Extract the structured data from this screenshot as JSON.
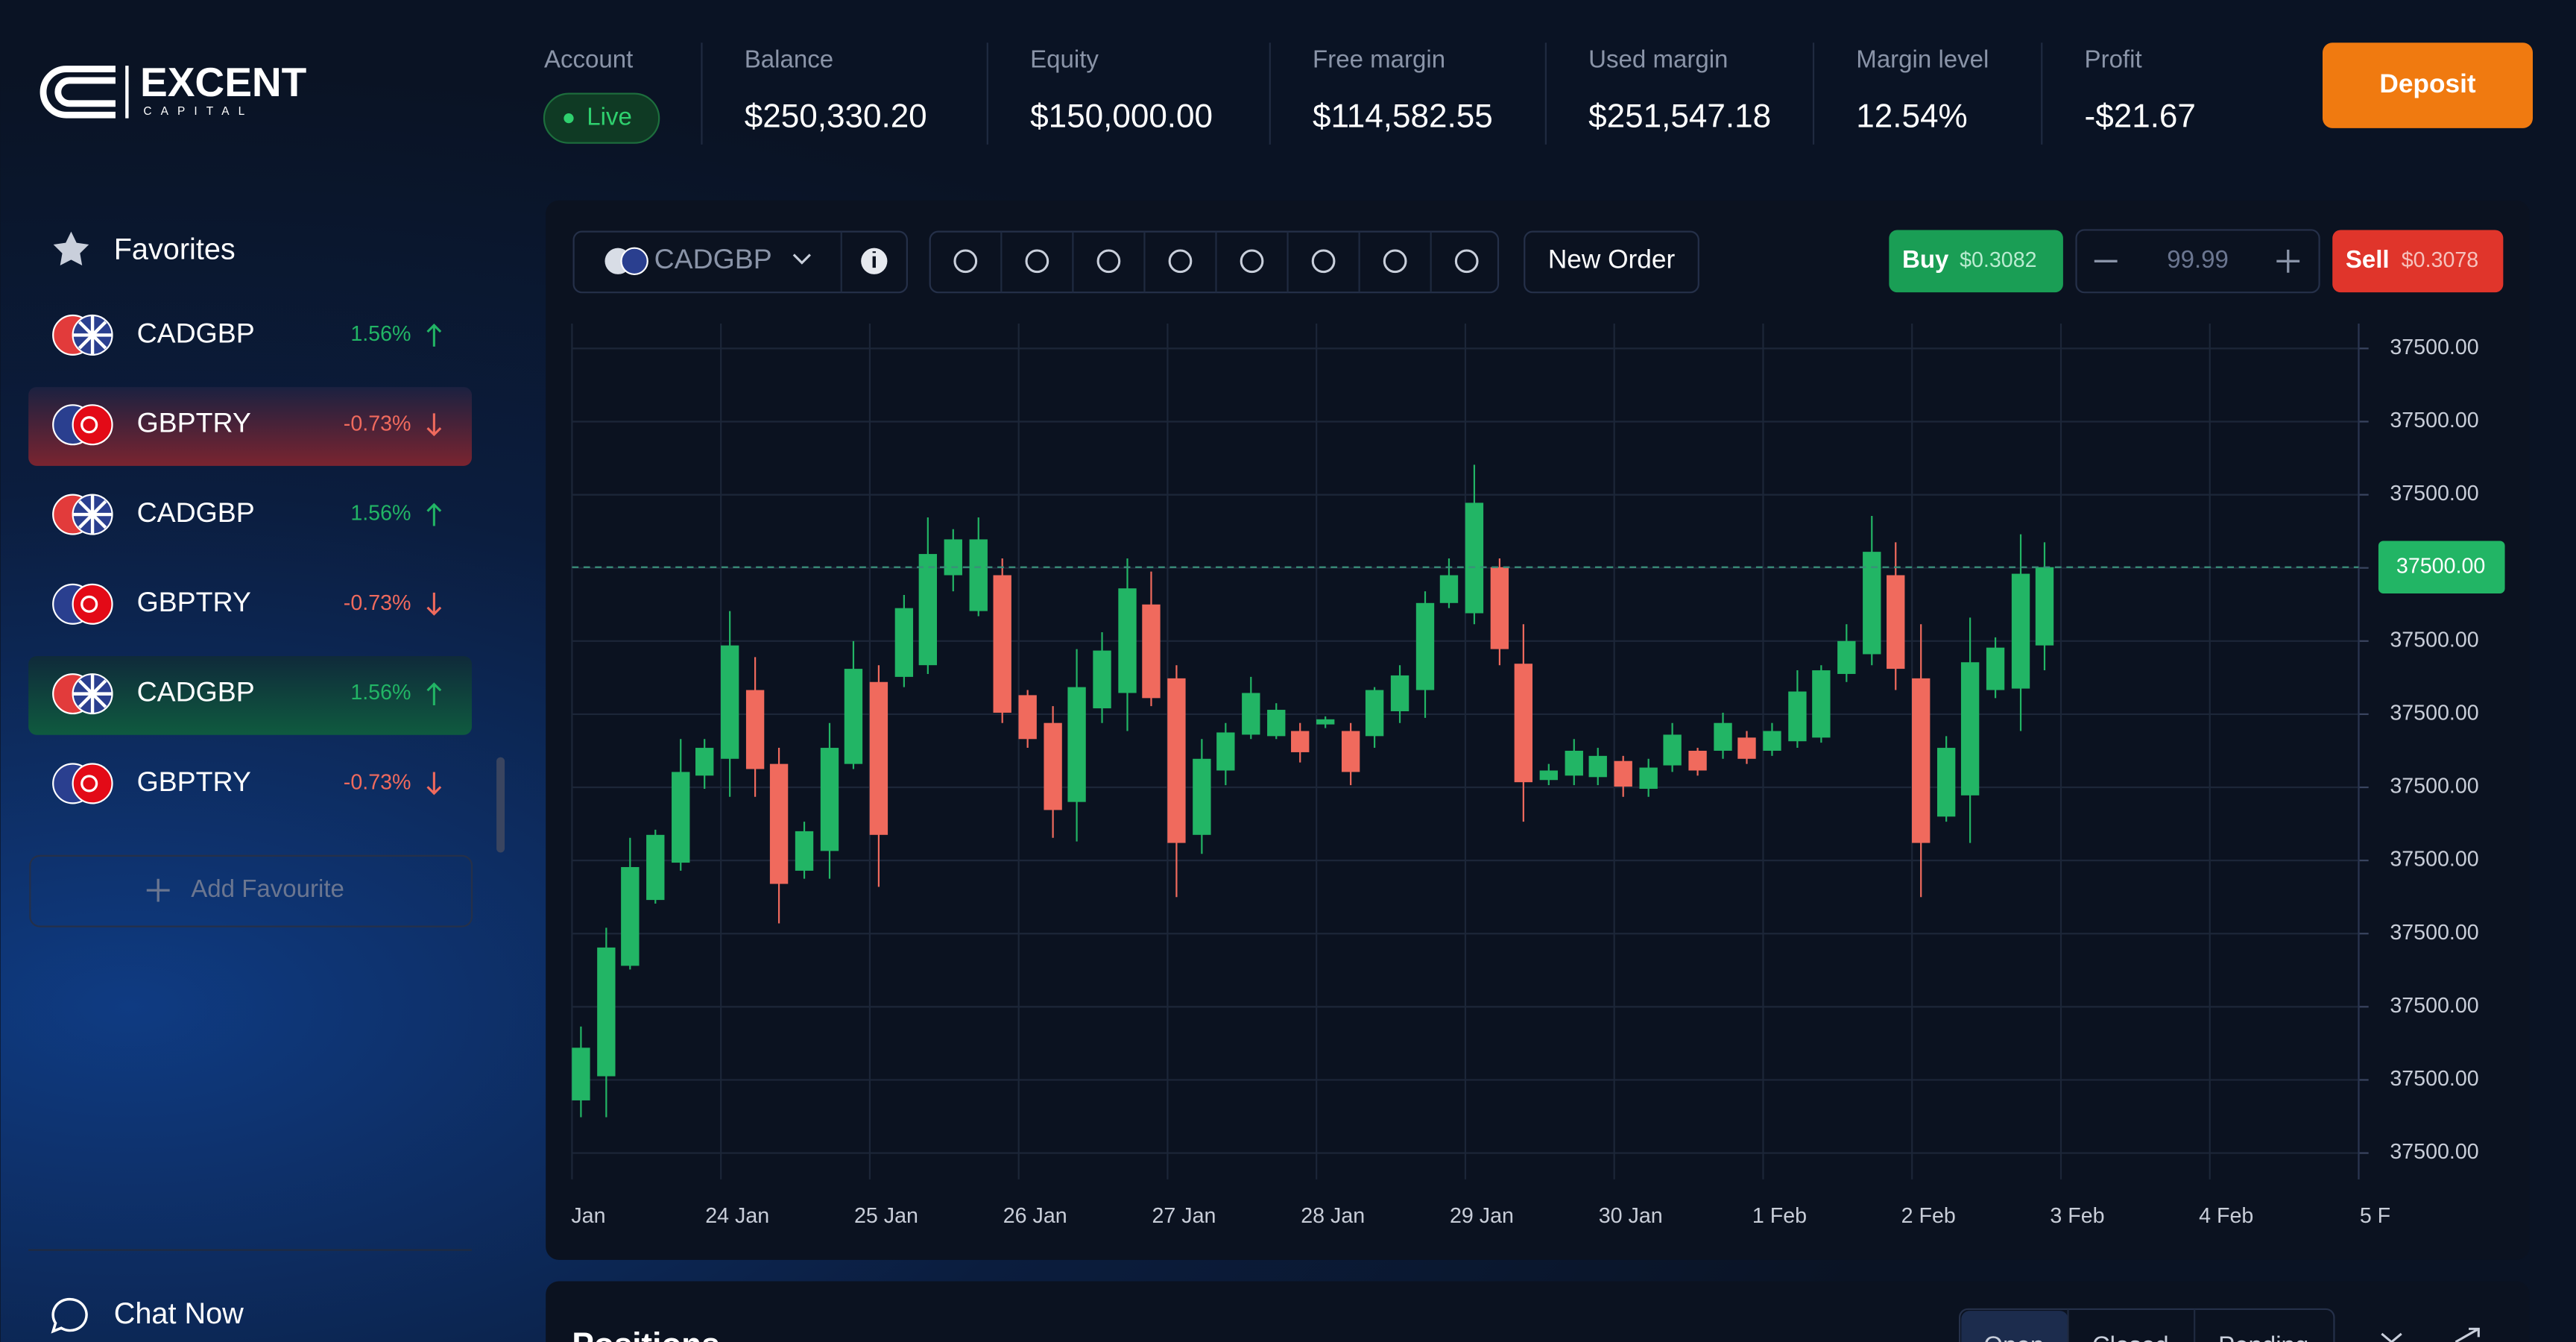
{
  "header": {
    "logo": {
      "name": "EXCENT",
      "sub": "CAPITAL"
    },
    "account": {
      "label": "Account",
      "status": "Live"
    },
    "stats": [
      {
        "label": "Balance",
        "value": "$250,330.20"
      },
      {
        "label": "Equity",
        "value": "$150,000.00"
      },
      {
        "label": "Free margin",
        "value": "$114,582.55"
      },
      {
        "label": "Used margin",
        "value": "$251,547.18"
      },
      {
        "label": "Margin level",
        "value": "12.54%"
      },
      {
        "label": "Profit",
        "value": "-$21.67"
      }
    ],
    "deposit": "Deposit"
  },
  "sidebar": {
    "title": "Favorites",
    "items": [
      {
        "symbol": "CADGBP",
        "change": "1.56%"
      },
      {
        "symbol": "GBPTRY",
        "change": "-0.73%"
      },
      {
        "symbol": "CADGBP",
        "change": "1.56%"
      },
      {
        "symbol": "GBPTRY",
        "change": "-0.73%"
      },
      {
        "symbol": "CADGBP",
        "change": "1.56%"
      },
      {
        "symbol": "GBPTRY",
        "change": "-0.73%"
      }
    ],
    "add": "Add Favourite",
    "chat": "Chat Now"
  },
  "toolbar": {
    "symbol": "CADGBP",
    "new_order": "New Order",
    "buy": {
      "label": "Buy",
      "price": "$0.3082"
    },
    "quantity": "99.99",
    "sell": {
      "label": "Sell",
      "price": "$0.3078"
    }
  },
  "chart_data": {
    "type": "candlestick",
    "up_color": "#22b565",
    "down_color": "#f06a5d",
    "grid": true,
    "xlim": [
      0,
      12
    ],
    "xticks": [
      {
        "value": 0,
        "label": "Jan"
      },
      {
        "value": 1,
        "label": "24 Jan"
      },
      {
        "value": 2,
        "label": "25 Jan"
      },
      {
        "value": 3,
        "label": "26 Jan"
      },
      {
        "value": 4,
        "label": "27 Jan"
      },
      {
        "value": 5,
        "label": "28 Jan"
      },
      {
        "value": 6,
        "label": "29 Jan"
      },
      {
        "value": 7,
        "label": "30 Jan"
      },
      {
        "value": 8,
        "label": "1 Feb"
      },
      {
        "value": 9,
        "label": "2 Feb"
      },
      {
        "value": 10,
        "label": "3 Feb"
      },
      {
        "value": 11,
        "label": "4 Feb"
      },
      {
        "value": 12,
        "label": "5 F"
      }
    ],
    "ylim": [
      -0.36,
      11.34
    ],
    "yticks": [
      {
        "value": 0,
        "label": "37500.00"
      },
      {
        "value": 1,
        "label": "37500.00"
      },
      {
        "value": 2,
        "label": "37500.00"
      },
      {
        "value": 3,
        "label": "37500.00"
      },
      {
        "value": 4,
        "label": "37500.00"
      },
      {
        "value": 5,
        "label": "37500.00"
      },
      {
        "value": 6,
        "label": "37500.00"
      },
      {
        "value": 7,
        "label": "37500.00"
      },
      {
        "value": 8,
        "label": "37500.00"
      },
      {
        "value": 9,
        "label": "37500.00"
      },
      {
        "value": 10,
        "label": "37500.00"
      },
      {
        "value": 11,
        "label": "37500.00"
      }
    ],
    "last_price": {
      "value": 8.01,
      "label": "37500.00"
    },
    "x": [
      0.06,
      0.23,
      0.39,
      0.56,
      0.73,
      0.89,
      1.06,
      1.23,
      1.39,
      1.56,
      1.73,
      1.89,
      2.06,
      2.23,
      2.39,
      2.56,
      2.73,
      2.89,
      3.06,
      3.23,
      3.39,
      3.56,
      3.73,
      3.89,
      4.06,
      4.23,
      4.39,
      4.56,
      4.73,
      4.89,
      5.06,
      5.23,
      5.39,
      5.56,
      5.73,
      5.89,
      6.06,
      6.23,
      6.39,
      6.56,
      6.73,
      6.89,
      7.06,
      7.23,
      7.39,
      7.56,
      7.73,
      7.89,
      8.06,
      8.23,
      8.39,
      8.56,
      8.73,
      8.89,
      9.06,
      9.23,
      9.39,
      9.56,
      9.73,
      9.89
    ],
    "open": [
      0.72,
      1.05,
      2.56,
      3.46,
      3.97,
      5.16,
      5.39,
      6.33,
      5.32,
      3.86,
      4.13,
      5.32,
      6.44,
      6.51,
      6.67,
      7.9,
      7.41,
      7.9,
      6.26,
      5.88,
      4.8,
      6.08,
      6.29,
      7.5,
      6.49,
      4.35,
      5.23,
      5.72,
      5.7,
      5.77,
      5.86,
      5.77,
      5.7,
      6.04,
      6.33,
      7.52,
      7.38,
      8.01,
      6.69,
      5.1,
      5.16,
      5.14,
      5.36,
      4.98,
      5.3,
      5.5,
      5.5,
      5.68,
      5.5,
      5.63,
      5.68,
      6.55,
      6.82,
      7.9,
      6.49,
      4.6,
      4.89,
      6.33,
      6.35,
      6.94
    ],
    "high": [
      1.73,
      3.08,
      4.31,
      4.42,
      5.66,
      5.66,
      7.41,
      6.78,
      5.54,
      4.53,
      5.88,
      7.0,
      6.67,
      7.63,
      8.69,
      8.53,
      8.69,
      8.13,
      6.33,
      6.11,
      6.89,
      7.12,
      8.13,
      7.95,
      6.67,
      5.66,
      5.88,
      6.51,
      6.15,
      5.88,
      5.97,
      5.88,
      6.37,
      6.67,
      7.68,
      8.13,
      9.41,
      8.13,
      7.23,
      5.32,
      5.66,
      5.54,
      5.43,
      5.39,
      5.88,
      5.54,
      6.02,
      5.77,
      5.88,
      6.6,
      6.67,
      7.23,
      8.71,
      8.35,
      7.23,
      5.7,
      7.32,
      7.05,
      8.46,
      8.35
    ],
    "low": [
      0.49,
      0.49,
      2.51,
      3.41,
      3.86,
      4.98,
      4.87,
      4.87,
      3.14,
      3.75,
      3.75,
      5.25,
      3.64,
      6.37,
      6.55,
      7.68,
      7.34,
      5.88,
      5.54,
      4.31,
      4.26,
      5.88,
      5.77,
      6.11,
      3.5,
      4.09,
      5.03,
      5.66,
      5.66,
      5.34,
      5.81,
      5.03,
      5.54,
      5.88,
      5.95,
      7.45,
      7.23,
      6.67,
      4.53,
      5.03,
      5.03,
      5.03,
      4.87,
      4.87,
      5.21,
      5.16,
      5.39,
      5.32,
      5.43,
      5.54,
      5.61,
      6.44,
      6.67,
      6.33,
      3.5,
      4.53,
      4.24,
      6.22,
      5.77,
      6.6
    ],
    "close": [
      1.44,
      2.81,
      3.91,
      4.35,
      5.21,
      5.54,
      6.94,
      5.25,
      3.68,
      4.4,
      5.54,
      6.62,
      4.35,
      7.45,
      8.19,
      8.39,
      8.39,
      6.02,
      5.66,
      4.69,
      6.37,
      6.87,
      7.72,
      6.22,
      4.24,
      5.39,
      5.75,
      6.29,
      6.06,
      5.48,
      5.93,
      5.21,
      6.33,
      6.53,
      7.52,
      7.9,
      8.89,
      6.89,
      5.07,
      5.23,
      5.5,
      5.43,
      5.01,
      5.27,
      5.72,
      5.23,
      5.88,
      5.39,
      5.77,
      6.31,
      6.6,
      7.0,
      8.22,
      6.62,
      4.24,
      5.54,
      6.71,
      6.91,
      7.92,
      8.01
    ]
  },
  "positions": {
    "title": "Positions",
    "tabs": [
      "Open",
      "Closed",
      "Pending"
    ]
  }
}
